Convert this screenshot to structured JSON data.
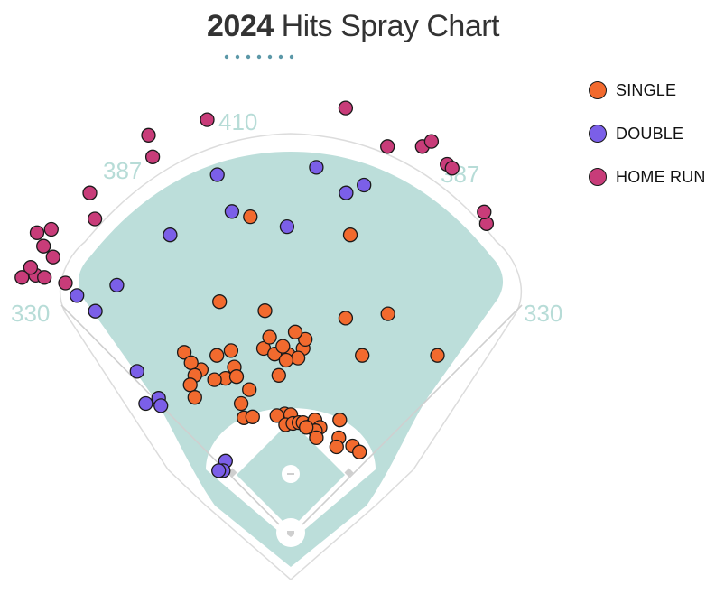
{
  "title": {
    "year": "2024",
    "rest": "Hits Spray Chart"
  },
  "colors": {
    "single": "#f26a2e",
    "double": "#7b5fe8",
    "home_run": "#c83c79",
    "field": "#bcdeda",
    "title_dots": "#5c98a8",
    "distance_text": "#b7dcd7"
  },
  "legend": [
    {
      "key": "single",
      "label": "SINGLE"
    },
    {
      "key": "double",
      "label": "DOUBLE"
    },
    {
      "key": "home_run",
      "label": "HOME RUN"
    }
  ],
  "fence_distances": {
    "left_line": "330",
    "left_center": "387",
    "center": "410",
    "right_center": "387",
    "right_line": "330"
  },
  "chart_data": {
    "type": "scatter",
    "title": "2024 Hits Spray Chart",
    "x_units": "horizontal field position (0 = left-field foul corner, 100 = right-field foul corner)",
    "y_units": "depth from home plate (0 = home plate, 100 = deepest point)",
    "series": [
      {
        "name": "SINGLE",
        "key": "single",
        "points": [
          [
            62.6,
            68.7
          ],
          [
            40.8,
            72.9
          ],
          [
            34.1,
            53.3
          ],
          [
            44.0,
            51.2
          ],
          [
            70.8,
            50.5
          ],
          [
            61.6,
            49.5
          ],
          [
            81.6,
            40.9
          ],
          [
            26.4,
            41.6
          ],
          [
            33.5,
            40.9
          ],
          [
            36.6,
            42.0
          ],
          [
            30.1,
            37.6
          ],
          [
            27.9,
            39.2
          ],
          [
            28.7,
            36.3
          ],
          [
            27.7,
            34.1
          ],
          [
            35.4,
            35.6
          ],
          [
            37.3,
            38.2
          ],
          [
            37.8,
            36.0
          ],
          [
            43.7,
            42.5
          ],
          [
            49.1,
            41.1
          ],
          [
            46.1,
            41.2
          ],
          [
            47.9,
            43.0
          ],
          [
            52.3,
            42.5
          ],
          [
            45.0,
            45.1
          ],
          [
            52.8,
            44.6
          ],
          [
            51.2,
            40.3
          ],
          [
            48.6,
            39.8
          ],
          [
            65.2,
            40.9
          ],
          [
            50.6,
            46.3
          ],
          [
            47.0,
            36.3
          ],
          [
            33.0,
            35.3
          ],
          [
            28.7,
            31.2
          ],
          [
            38.8,
            29.8
          ],
          [
            39.4,
            26.5
          ],
          [
            41.3,
            26.7
          ],
          [
            40.6,
            33.0
          ],
          [
            48.3,
            27.4
          ],
          [
            49.6,
            27.2
          ],
          [
            46.6,
            27.0
          ],
          [
            48.5,
            24.9
          ],
          [
            50.1,
            25.2
          ],
          [
            51.4,
            25.4
          ],
          [
            52.3,
            25.4
          ],
          [
            54.3,
            24.9
          ],
          [
            54.9,
            26.0
          ],
          [
            56.0,
            24.3
          ],
          [
            55.0,
            23.5
          ],
          [
            53.0,
            24.3
          ],
          [
            60.3,
            26.0
          ],
          [
            60.1,
            21.9
          ],
          [
            63.1,
            20.0
          ],
          [
            59.6,
            19.8
          ],
          [
            55.2,
            21.9
          ],
          [
            64.6,
            18.6
          ]
        ]
      },
      {
        "name": "DOUBLE",
        "key": "double",
        "points": [
          [
            11.7,
            57.1
          ],
          [
            23.3,
            68.7
          ],
          [
            36.8,
            74.1
          ],
          [
            48.8,
            70.6
          ],
          [
            65.6,
            80.2
          ],
          [
            61.7,
            78.4
          ],
          [
            55.2,
            84.3
          ],
          [
            33.6,
            82.6
          ],
          [
            3.0,
            54.7
          ],
          [
            7.0,
            51.1
          ],
          [
            16.1,
            37.2
          ],
          [
            18.0,
            29.8
          ],
          [
            20.8,
            31.0
          ],
          [
            21.3,
            29.3
          ],
          [
            35.4,
            16.5
          ],
          [
            34.9,
            14.3
          ],
          [
            33.9,
            14.3
          ]
        ]
      },
      {
        "name": "HOME RUN",
        "key": "home_run",
        "points": [
          [
            31.4,
            95.3
          ],
          [
            61.6,
            98.0
          ],
          [
            18.6,
            91.7
          ],
          [
            19.5,
            86.7
          ],
          [
            5.8,
            78.4
          ],
          [
            6.9,
            72.4
          ],
          [
            -5.7,
            69.2
          ],
          [
            -2.6,
            70.0
          ],
          [
            -4.3,
            66.1
          ],
          [
            -2.2,
            63.6
          ],
          [
            -6.0,
            59.4
          ],
          [
            -7.1,
            61.2
          ],
          [
            -9.0,
            58.9
          ],
          [
            -4.1,
            58.9
          ],
          [
            0.5,
            57.6
          ],
          [
            78.3,
            89.1
          ],
          [
            80.3,
            90.3
          ],
          [
            83.7,
            85.0
          ],
          [
            84.8,
            84.1
          ],
          [
            70.7,
            89.1
          ],
          [
            92.3,
            71.3
          ],
          [
            91.8,
            74.0
          ]
        ]
      }
    ]
  }
}
